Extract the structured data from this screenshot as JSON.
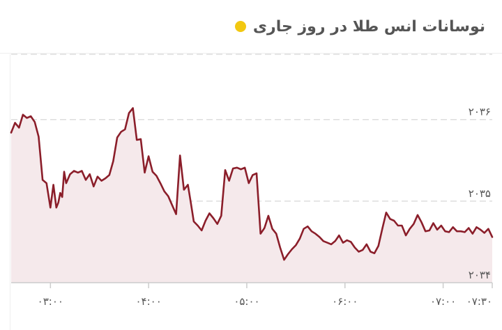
{
  "header": {
    "title": "نوسانات انس طلا در روز جاری",
    "dot_color": "#f2c811"
  },
  "colors": {
    "line": "#8b1e2a",
    "area": "#f5e9eb",
    "grid": "#dddddd",
    "axis": "#cccccc"
  },
  "chart_data": {
    "type": "area",
    "title": "نوسانات انس طلا در روز جاری",
    "xlabel": "",
    "ylabel": "",
    "ylim": [
      2034,
      2036.8
    ],
    "xlim": [
      2.6,
      7.5
    ],
    "grid": true,
    "y_ticks": [
      {
        "value": 2034,
        "label": "۲۰۳۴"
      },
      {
        "value": 2035,
        "label": "۲۰۳۵"
      },
      {
        "value": 2036,
        "label": "۲۰۳۶"
      }
    ],
    "x_ticks": [
      {
        "value": 3.0,
        "label": "۰۳:۰۰"
      },
      {
        "value": 4.0,
        "label": "۰۴:۰۰"
      },
      {
        "value": 5.0,
        "label": "۰۵:۰۰"
      },
      {
        "value": 6.0,
        "label": "۰۶:۰۰"
      },
      {
        "value": 7.0,
        "label": "۰۷:۰۰"
      },
      {
        "value": 7.5,
        "label": "۰۷:۳۰"
      }
    ],
    "series": [
      {
        "x": [
          2.6,
          2.64,
          2.68,
          2.72,
          2.76,
          2.8,
          2.84,
          2.88,
          2.92,
          2.96,
          3.0,
          3.03,
          3.06,
          3.08,
          3.1,
          3.12,
          3.14,
          3.16,
          3.2,
          3.24,
          3.28,
          3.32,
          3.36,
          3.4,
          3.44,
          3.48,
          3.52,
          3.56,
          3.6,
          3.64,
          3.68,
          3.72,
          3.76,
          3.8,
          3.84,
          3.88,
          3.92,
          3.96,
          4.0,
          4.04,
          4.08,
          4.12,
          4.16,
          4.2,
          4.24,
          4.28,
          4.32,
          4.36,
          4.4,
          4.43,
          4.46,
          4.5,
          4.54,
          4.58,
          4.62,
          4.66,
          4.7,
          4.74,
          4.78,
          4.82,
          4.86,
          4.9,
          4.94,
          4.98,
          5.02,
          5.06,
          5.1,
          5.14,
          5.18,
          5.22,
          5.26,
          5.3,
          5.34,
          5.38,
          5.42,
          5.46,
          5.5,
          5.54,
          5.58,
          5.62,
          5.66,
          5.7,
          5.74,
          5.78,
          5.82,
          5.86,
          5.9,
          5.94,
          5.98,
          6.02,
          6.06,
          6.1,
          6.14,
          6.18,
          6.22,
          6.26,
          6.3,
          6.34,
          6.38,
          6.42,
          6.46,
          6.5,
          6.54,
          6.58,
          6.62,
          6.66,
          6.7,
          6.74,
          6.78,
          6.82,
          6.86,
          6.9,
          6.94,
          6.98,
          7.02,
          7.06,
          7.1,
          7.14,
          7.18,
          7.22,
          7.26,
          7.3,
          7.34,
          7.38,
          7.42,
          7.46,
          7.5
        ],
        "y": [
          2035.84,
          2035.96,
          2035.9,
          2036.06,
          2036.02,
          2036.04,
          2035.97,
          2035.79,
          2035.26,
          2035.22,
          2034.92,
          2035.2,
          2034.92,
          2034.98,
          2035.1,
          2035.05,
          2035.36,
          2035.22,
          2035.33,
          2035.37,
          2035.35,
          2035.37,
          2035.26,
          2035.33,
          2035.18,
          2035.3,
          2035.25,
          2035.28,
          2035.32,
          2035.49,
          2035.78,
          2035.85,
          2035.88,
          2036.08,
          2036.14,
          2035.75,
          2035.76,
          2035.35,
          2035.55,
          2035.36,
          2035.31,
          2035.22,
          2035.12,
          2035.06,
          2034.95,
          2034.84,
          2035.56,
          2035.14,
          2035.2,
          2034.98,
          2034.75,
          2034.7,
          2034.64,
          2034.76,
          2034.85,
          2034.79,
          2034.72,
          2034.82,
          2035.38,
          2035.25,
          2035.4,
          2035.41,
          2035.39,
          2035.41,
          2035.22,
          2035.32,
          2035.34,
          2034.6,
          2034.67,
          2034.82,
          2034.66,
          2034.6,
          2034.43,
          2034.28,
          2034.35,
          2034.41,
          2034.46,
          2034.54,
          2034.66,
          2034.69,
          2034.63,
          2034.6,
          2034.56,
          2034.51,
          2034.49,
          2034.47,
          2034.51,
          2034.58,
          2034.49,
          2034.52,
          2034.5,
          2034.43,
          2034.38,
          2034.4,
          2034.47,
          2034.38,
          2034.36,
          2034.45,
          2034.66,
          2034.86,
          2034.78,
          2034.76,
          2034.7,
          2034.7,
          2034.58,
          2034.66,
          2034.72,
          2034.83,
          2034.74,
          2034.63,
          2034.64,
          2034.73,
          2034.65,
          2034.7,
          2034.63,
          2034.62,
          2034.68,
          2034.63,
          2034.63,
          2034.62,
          2034.67,
          2034.6,
          2034.68,
          2034.65,
          2034.61,
          2034.66,
          2034.56
        ]
      }
    ]
  }
}
